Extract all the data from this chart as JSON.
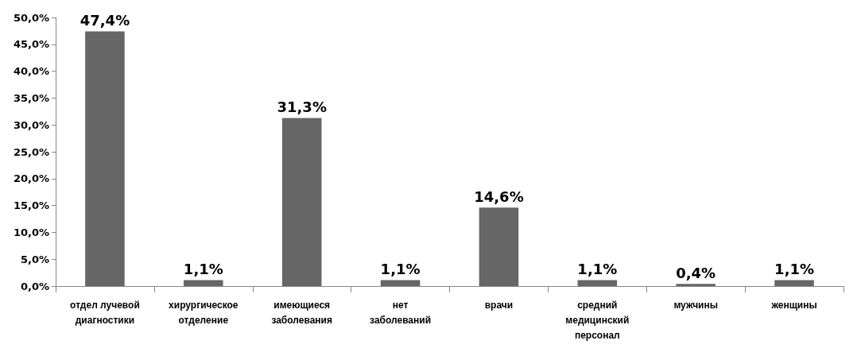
{
  "chart_data": {
    "type": "bar",
    "categories": [
      "отдел лучевой диагностики",
      "хирургическое отделение",
      "имеющиеся заболевания",
      "нет заболеваний",
      "врачи",
      "средний медицинский персонал",
      "мужчины",
      "женщины"
    ],
    "values": [
      47.4,
      1.1,
      31.3,
      1.1,
      14.6,
      1.1,
      0.4,
      1.1
    ],
    "value_labels": [
      "47,4%",
      "1,1%",
      "31,3%",
      "1,1%",
      "14,6%",
      "1,1%",
      "0,4%",
      "1,1%"
    ],
    "color": "#666666",
    "ylim": [
      0,
      50
    ],
    "yticks": [
      {
        "value": 0,
        "label": "0,0%"
      },
      {
        "value": 5,
        "label": "5,0%"
      },
      {
        "value": 10,
        "label": "10,0%"
      },
      {
        "value": 15,
        "label": "15,0%"
      },
      {
        "value": 20,
        "label": "20,0%"
      },
      {
        "value": 25,
        "label": "25,0%"
      },
      {
        "value": 30,
        "label": "30,0%"
      },
      {
        "value": 35,
        "label": "35,0%"
      },
      {
        "value": 40,
        "label": "40,0%"
      },
      {
        "value": 45,
        "label": "45,0%"
      },
      {
        "value": 50,
        "label": "50,0%"
      }
    ],
    "grid": false
  }
}
